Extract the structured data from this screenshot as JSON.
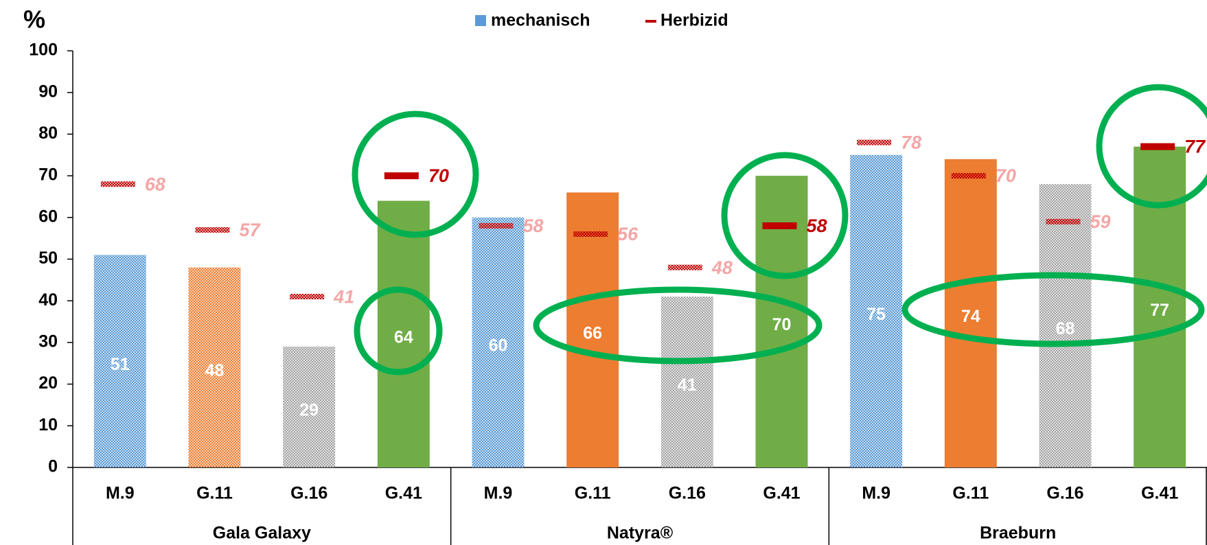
{
  "chart_data": {
    "type": "bar",
    "y_label": "%",
    "categories": [
      "M.9",
      "G.11",
      "G.16",
      "G.41",
      "M.9",
      "G.11",
      "G.16",
      "G.41",
      "M.9",
      "G.11",
      "G.16",
      "G.41"
    ],
    "groups": [
      "Gala Galaxy",
      "Natyra®",
      "Braeburn"
    ],
    "series": [
      {
        "name": "mechanisch",
        "color": "#5b9bd5",
        "values": [
          51,
          48,
          29,
          64,
          60,
          66,
          41,
          70,
          75,
          74,
          68,
          77
        ],
        "point_colors": [
          "#5b9bd5",
          "#ed7d31",
          "#a5a5a5",
          "#70ad47",
          "#5b9bd5",
          "#ed7d31",
          "#a5a5a5",
          "#70ad47",
          "#5b9bd5",
          "#ed7d31",
          "#a5a5a5",
          "#70ad47"
        ],
        "hatched": [
          true,
          true,
          true,
          false,
          true,
          false,
          true,
          false,
          true,
          false,
          true,
          false
        ]
      },
      {
        "name": "Herbizid",
        "color": "#c00000",
        "values": [
          68,
          57,
          41,
          70,
          58,
          56,
          48,
          58,
          78,
          70,
          59,
          77
        ],
        "hatched": [
          true,
          true,
          true,
          false,
          true,
          true,
          true,
          false,
          true,
          true,
          true,
          false
        ]
      }
    ],
    "ylim": [
      0,
      100
    ],
    "yticks": [
      0,
      10,
      20,
      30,
      40,
      50,
      60,
      70,
      80,
      90,
      100
    ],
    "grid": false
  }
}
